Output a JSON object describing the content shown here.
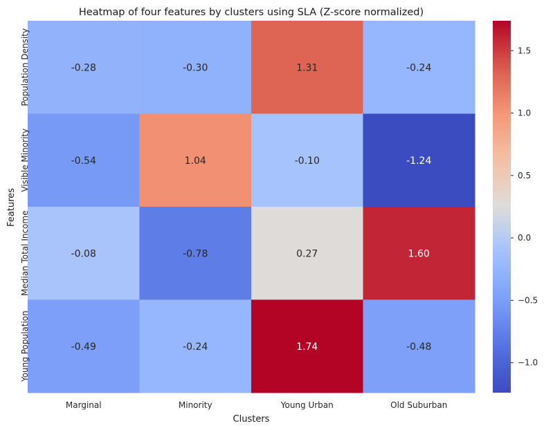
{
  "chart_data": {
    "type": "heatmap",
    "title": "Heatmap of four features by clusters using SLA (Z-score normalized)",
    "xlabel": "Clusters",
    "ylabel": "Features",
    "x_categories": [
      "Marginal",
      "Minority",
      "Young Urban",
      "Old Suburban"
    ],
    "y_categories": [
      "Population Density",
      "Visible Minority",
      "Median Total Income",
      "Young Population"
    ],
    "values": [
      [
        -0.28,
        -0.3,
        1.31,
        -0.24
      ],
      [
        -0.54,
        1.04,
        -0.1,
        -1.24
      ],
      [
        -0.08,
        -0.78,
        0.27,
        1.6
      ],
      [
        -0.49,
        -0.24,
        1.74,
        -0.48
      ]
    ],
    "value_labels": [
      [
        "-0.28",
        "-0.30",
        "1.31",
        "-0.24"
      ],
      [
        "-0.54",
        "1.04",
        "-0.10",
        "-1.24"
      ],
      [
        "-0.08",
        "-0.78",
        "0.27",
        "1.60"
      ],
      [
        "-0.49",
        "-0.24",
        "1.74",
        "-0.48"
      ]
    ],
    "colormap": "coolwarm",
    "colorbar": {
      "vmin": -1.24,
      "vmax": 1.74,
      "ticks": [
        -1.0,
        -0.5,
        0.0,
        0.5,
        1.0,
        1.5
      ],
      "tick_labels": [
        "−1.0",
        "−0.5",
        "0.0",
        "0.5",
        "1.0",
        "1.5"
      ]
    },
    "grid": false,
    "legend": "colorbar-right"
  }
}
